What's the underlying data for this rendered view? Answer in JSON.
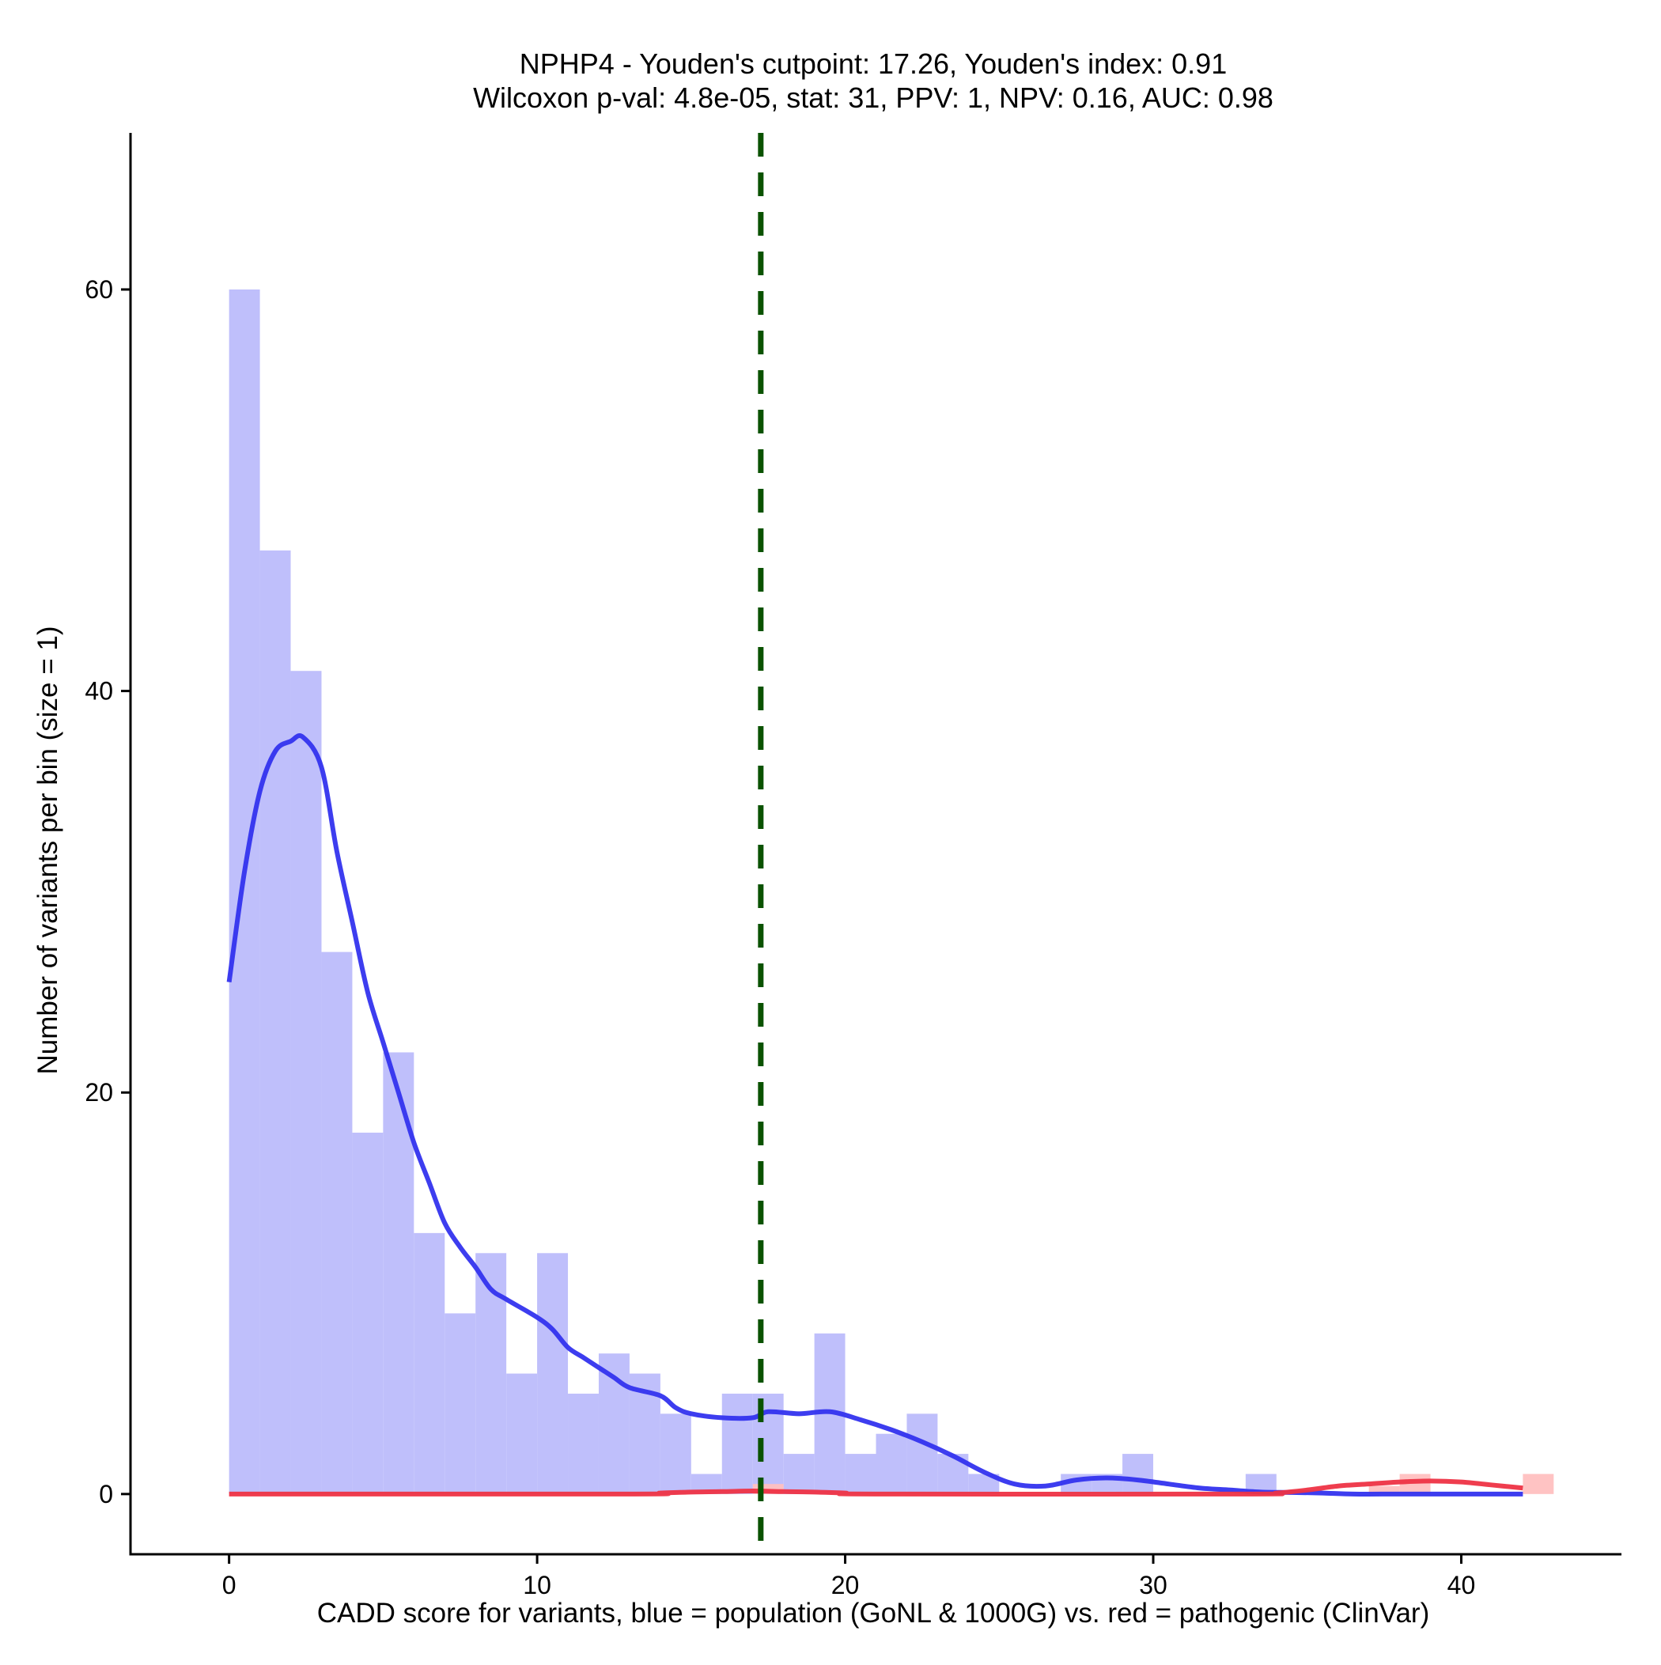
{
  "chart_data": {
    "type": "histogram",
    "title_line1": "NPHP4 - Youden's cutpoint: 17.26, Youden's index: 0.91",
    "title_line2": "Wilcoxon p-val: 4.8e-05, stat: 31, PPV: 1, NPV: 0.16, AUC: 0.98",
    "xlabel": "CADD score for variants, blue = population (GoNL & 1000G) vs. red = pathogenic (ClinVar)",
    "ylabel": "Number of variants per bin (size = 1)",
    "xlim": [
      -3.2,
      45.2
    ],
    "ylim": [
      -3,
      67.8
    ],
    "x_ticks": [
      0,
      10,
      20,
      30,
      40
    ],
    "y_ticks": [
      0,
      20,
      40,
      60
    ],
    "bin_size": 1,
    "grid": false,
    "cutpoint": 17.26,
    "colors": {
      "population_bar": "#bfbffb",
      "pathogenic_bar": "#ffc0c0",
      "population_line": "#3333ee",
      "pathogenic_line": "#ee3344",
      "cutpoint_line": "#0a5200"
    },
    "series": [
      {
        "name": "population (GoNL & 1000G)",
        "bins": [
          [
            0,
            60
          ],
          [
            1,
            47
          ],
          [
            2,
            41
          ],
          [
            3,
            27
          ],
          [
            4,
            18
          ],
          [
            5,
            22
          ],
          [
            6,
            13
          ],
          [
            7,
            9
          ],
          [
            8,
            12
          ],
          [
            9,
            6
          ],
          [
            10,
            12
          ],
          [
            11,
            5
          ],
          [
            12,
            7
          ],
          [
            13,
            6
          ],
          [
            14,
            4
          ],
          [
            15,
            1
          ],
          [
            16,
            5
          ],
          [
            17,
            5
          ],
          [
            18,
            2
          ],
          [
            19,
            8
          ],
          [
            20,
            2
          ],
          [
            21,
            3
          ],
          [
            22,
            4
          ],
          [
            23,
            2
          ],
          [
            24,
            1
          ],
          [
            27,
            1
          ],
          [
            28,
            1
          ],
          [
            29,
            2
          ],
          [
            33,
            1
          ]
        ],
        "density_curve": [
          [
            0,
            25.5
          ],
          [
            0.5,
            31
          ],
          [
            1,
            35
          ],
          [
            1.5,
            37
          ],
          [
            2,
            37.5
          ],
          [
            2.4,
            37.7
          ],
          [
            3,
            36.2
          ],
          [
            3.5,
            32
          ],
          [
            4,
            28.5
          ],
          [
            4.5,
            25
          ],
          [
            5,
            22.5
          ],
          [
            5.5,
            20
          ],
          [
            6,
            17.5
          ],
          [
            6.5,
            15.5
          ],
          [
            7,
            13.5
          ],
          [
            7.5,
            12.3
          ],
          [
            8,
            11.3
          ],
          [
            8.5,
            10.2
          ],
          [
            9,
            9.7
          ],
          [
            10,
            8.8
          ],
          [
            10.5,
            8.2
          ],
          [
            11,
            7.3
          ],
          [
            11.5,
            6.8
          ],
          [
            12,
            6.3
          ],
          [
            12.5,
            5.8
          ],
          [
            13,
            5.3
          ],
          [
            14,
            4.9
          ],
          [
            14.5,
            4.3
          ],
          [
            15,
            4.0
          ],
          [
            16,
            3.8
          ],
          [
            17,
            3.8
          ],
          [
            17.5,
            4.1
          ],
          [
            18.5,
            4.0
          ],
          [
            19.5,
            4.1
          ],
          [
            20.5,
            3.7
          ],
          [
            21.5,
            3.2
          ],
          [
            22.5,
            2.6
          ],
          [
            23.5,
            1.9
          ],
          [
            24.5,
            1.1
          ],
          [
            25.5,
            0.5
          ],
          [
            26.5,
            0.4
          ],
          [
            27.5,
            0.7
          ],
          [
            28.5,
            0.8
          ],
          [
            29.5,
            0.7
          ],
          [
            30.5,
            0.5
          ],
          [
            31.5,
            0.3
          ],
          [
            32.5,
            0.2
          ],
          [
            33.5,
            0.1
          ],
          [
            34.5,
            0.08
          ],
          [
            35.5,
            0.05
          ],
          [
            36.5,
            0.0
          ],
          [
            38,
            0.0
          ],
          [
            40,
            0.0
          ],
          [
            42,
            0.0
          ]
        ]
      },
      {
        "name": "pathogenic (ClinVar)",
        "bins": [
          [
            17,
            0.5
          ],
          [
            37,
            0.4
          ],
          [
            38,
            1
          ],
          [
            42,
            1
          ]
        ],
        "density_curve": [
          [
            0,
            0
          ],
          [
            13,
            0
          ],
          [
            14,
            0.05
          ],
          [
            15,
            0.1
          ],
          [
            16,
            0.12
          ],
          [
            17,
            0.15
          ],
          [
            18,
            0.12
          ],
          [
            19,
            0.1
          ],
          [
            20,
            0.05
          ],
          [
            21,
            0
          ],
          [
            33,
            0
          ],
          [
            34,
            0.05
          ],
          [
            35,
            0.2
          ],
          [
            36,
            0.4
          ],
          [
            37,
            0.5
          ],
          [
            38,
            0.6
          ],
          [
            39,
            0.65
          ],
          [
            40,
            0.6
          ],
          [
            41,
            0.45
          ],
          [
            42,
            0.3
          ]
        ]
      }
    ]
  }
}
